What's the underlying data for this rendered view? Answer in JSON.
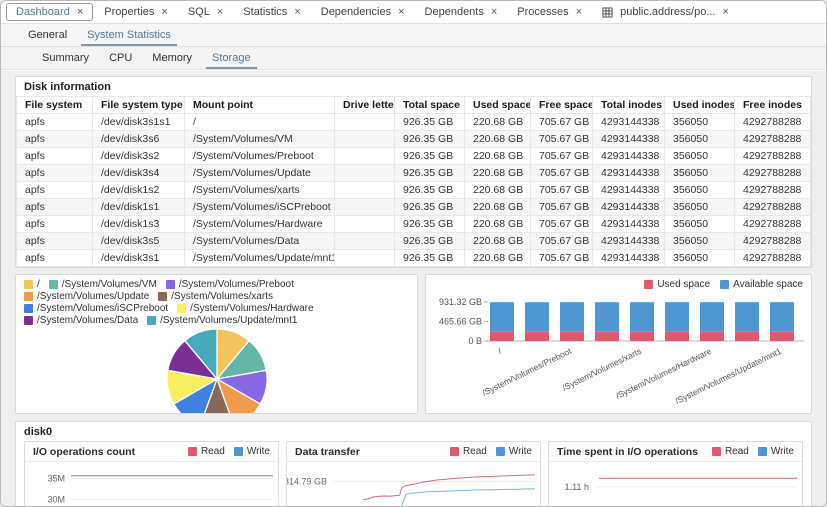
{
  "window_tabs": {
    "close_glyph": "×",
    "items": [
      {
        "label": "Dashboard",
        "active": true
      },
      {
        "label": "Properties",
        "active": false
      },
      {
        "label": "SQL",
        "active": false
      },
      {
        "label": "Statistics",
        "active": false
      },
      {
        "label": "Dependencies",
        "active": false
      },
      {
        "label": "Dependents",
        "active": false
      },
      {
        "label": "Processes",
        "active": false
      },
      {
        "label": "public.address/po...",
        "active": false,
        "icon": "table"
      }
    ]
  },
  "dashboard_tabs": {
    "items": [
      "General",
      "System Statistics"
    ],
    "active": "System Statistics"
  },
  "stat_tabs": {
    "items": [
      "Summary",
      "CPU",
      "Memory",
      "Storage"
    ],
    "active": "Storage"
  },
  "disk_info": {
    "title": "Disk information",
    "columns": [
      "File system",
      "File system type",
      "Mount point",
      "Drive letter",
      "Total space",
      "Used space",
      "Free space",
      "Total inodes",
      "Used inodes",
      "Free inodes"
    ],
    "rows": [
      [
        "apfs",
        "/dev/disk3s1s1",
        "/",
        "",
        "926.35 GB",
        "220.68 GB",
        "705.67 GB",
        "4293144338",
        "356050",
        "4292788288"
      ],
      [
        "apfs",
        "/dev/disk3s6",
        "/System/Volumes/VM",
        "",
        "926.35 GB",
        "220.68 GB",
        "705.67 GB",
        "4293144338",
        "356050",
        "4292788288"
      ],
      [
        "apfs",
        "/dev/disk3s2",
        "/System/Volumes/Preboot",
        "",
        "926.35 GB",
        "220.68 GB",
        "705.67 GB",
        "4293144338",
        "356050",
        "4292788288"
      ],
      [
        "apfs",
        "/dev/disk3s4",
        "/System/Volumes/Update",
        "",
        "926.35 GB",
        "220.68 GB",
        "705.67 GB",
        "4293144338",
        "356050",
        "4292788288"
      ],
      [
        "apfs",
        "/dev/disk1s2",
        "/System/Volumes/xarts",
        "",
        "926.35 GB",
        "220.68 GB",
        "705.67 GB",
        "4293144338",
        "356050",
        "4292788288"
      ],
      [
        "apfs",
        "/dev/disk1s1",
        "/System/Volumes/iSCPreboot",
        "",
        "926.35 GB",
        "220.68 GB",
        "705.67 GB",
        "4293144338",
        "356050",
        "4292788288"
      ],
      [
        "apfs",
        "/dev/disk1s3",
        "/System/Volumes/Hardware",
        "",
        "926.35 GB",
        "220.68 GB",
        "705.67 GB",
        "4293144338",
        "356050",
        "4292788288"
      ],
      [
        "apfs",
        "/dev/disk3s5",
        "/System/Volumes/Data",
        "",
        "926.35 GB",
        "220.68 GB",
        "705.67 GB",
        "4293144338",
        "356050",
        "4292788288"
      ],
      [
        "apfs",
        "/dev/disk3s1",
        "/System/Volumes/Update/mnt1",
        "",
        "926.35 GB",
        "220.68 GB",
        "705.67 GB",
        "4293144338",
        "356050",
        "4292788288"
      ]
    ]
  },
  "disk0": {
    "title": "disk0"
  },
  "chart_data": [
    {
      "id": "used_space_pie",
      "type": "pie",
      "title": "",
      "labels": [
        "/",
        "/System/Volumes/VM",
        "/System/Volumes/Preboot",
        "/System/Volumes/Update",
        "/System/Volumes/xarts",
        "/System/Volumes/iSCPreboot",
        "/System/Volumes/Hardware",
        "/System/Volumes/Data",
        "/System/Volumes/Update/mnt1"
      ],
      "values": [
        220.68,
        220.68,
        220.68,
        220.68,
        220.68,
        220.68,
        220.68,
        220.68,
        220.68
      ],
      "unit": "GB",
      "colors": [
        "#f2c55c",
        "#62b7a8",
        "#8867e4",
        "#ef9a4c",
        "#86695a",
        "#3f80e0",
        "#f7ef5e",
        "#7b2e94",
        "#46aabf"
      ],
      "legend_position": "top-left"
    },
    {
      "id": "space_stacked_bar",
      "type": "bar",
      "stacked": true,
      "categories": [
        "/",
        "/System/Volumes/VM",
        "/System/Volumes/Preboot",
        "/System/Volumes/Update",
        "/System/Volumes/xarts",
        "/System/Volumes/iSCPreboot",
        "/System/Volumes/Hardware",
        "/System/Volumes/Data",
        "/System/Volumes/Update/mnt1"
      ],
      "series": [
        {
          "name": "Used space",
          "color": "#dd5a6e",
          "values": [
            220.68,
            220.68,
            220.68,
            220.68,
            220.68,
            220.68,
            220.68,
            220.68,
            220.68
          ]
        },
        {
          "name": "Available space",
          "color": "#4e96d2",
          "values": [
            705.67,
            705.67,
            705.67,
            705.67,
            705.67,
            705.67,
            705.67,
            705.67,
            705.67
          ]
        }
      ],
      "unit": "GB",
      "ylim": [
        0,
        931.32
      ],
      "yticks": [
        {
          "label": "931.32 GB",
          "value": 931.32
        },
        {
          "label": "465.66 GB",
          "value": 465.66
        },
        {
          "label": "0 B",
          "value": 0
        }
      ],
      "xticks_shown": [
        "/",
        "/System/Volumes/Preboot",
        "/System/Volumes/xarts",
        "/System/Volumes/Hardware",
        "/System/Volumes/Update/mnt1"
      ],
      "legend_position": "top-right"
    },
    {
      "id": "io_ops",
      "type": "line",
      "title": "I/O operations count",
      "legend": [
        {
          "name": "Read",
          "color": "#dd5a6e"
        },
        {
          "name": "Write",
          "color": "#4e96d2"
        }
      ],
      "unit": "M",
      "yticks": [
        {
          "label": "35M",
          "value": 35
        },
        {
          "label": "30M",
          "value": 30
        }
      ],
      "ywindow": [
        27.9,
        39.0
      ],
      "series": [
        {
          "name": "Read",
          "color": "#cf6b79",
          "points": [
            [
              0.0,
              35.7
            ],
            [
              1.0,
              35.7
            ]
          ]
        }
      ]
    },
    {
      "id": "data_transfer",
      "type": "line",
      "title": "Data transfer",
      "legend": [
        {
          "name": "Read",
          "color": "#dd5a6e"
        },
        {
          "name": "Write",
          "color": "#4e96d2"
        }
      ],
      "unit": "GB",
      "yticks": [
        {
          "label": "314.79 GB",
          "value": 314.79
        }
      ],
      "ywindow": [
        242,
        368
      ],
      "series": [
        {
          "name": "Read",
          "color": "#cf6b79",
          "points": [
            [
              0.15,
              265
            ],
            [
              0.18,
              268
            ],
            [
              0.2,
              272
            ],
            [
              0.23,
              274
            ],
            [
              0.26,
              275
            ],
            [
              0.28,
              274
            ],
            [
              0.31,
              276
            ],
            [
              0.33,
              277
            ],
            [
              0.34,
              298
            ],
            [
              0.36,
              303
            ],
            [
              0.4,
              307
            ],
            [
              0.44,
              312
            ],
            [
              0.48,
              316
            ],
            [
              0.52,
              319
            ],
            [
              0.56,
              321
            ],
            [
              0.6,
              323
            ],
            [
              0.65,
              325
            ],
            [
              0.7,
              327
            ],
            [
              0.75,
              328
            ],
            [
              0.8,
              329
            ],
            [
              0.85,
              330
            ],
            [
              0.9,
              331
            ],
            [
              0.95,
              332
            ],
            [
              1.0,
              333
            ]
          ]
        },
        {
          "name": "Write",
          "color": "#7fb5cf",
          "points": [
            [
              0.34,
              248
            ],
            [
              0.36,
              278
            ],
            [
              0.38,
              282
            ],
            [
              0.42,
              284
            ],
            [
              0.46,
              286
            ],
            [
              0.5,
              287
            ],
            [
              0.55,
              288
            ],
            [
              0.6,
              289
            ],
            [
              0.65,
              290
            ],
            [
              0.7,
              291
            ],
            [
              0.75,
              292
            ],
            [
              0.8,
              292
            ],
            [
              0.85,
              293
            ],
            [
              0.9,
              293
            ],
            [
              0.95,
              294
            ],
            [
              1.0,
              295
            ]
          ]
        }
      ]
    },
    {
      "id": "time_io",
      "type": "line",
      "title": "Time spent in I/O operations",
      "legend": [
        {
          "name": "Read",
          "color": "#dd5a6e"
        },
        {
          "name": "Write",
          "color": "#4e96d2"
        }
      ],
      "unit": "h",
      "yticks": [
        {
          "label": "1.11 h",
          "value": 1.11
        }
      ],
      "ywindow": [
        0.89,
        1.37
      ],
      "series": [
        {
          "name": "Read",
          "color": "#cf6b79",
          "points": [
            [
              0.02,
              1.2
            ],
            [
              1.0,
              1.2
            ]
          ]
        }
      ]
    }
  ],
  "colors": {
    "active_tab_text": "#527a8a",
    "active_tab_underline": "#7d97a5",
    "used_space": "#dd5a6e",
    "available_space": "#4e96d2",
    "panel_border": "#d9d9d9"
  }
}
